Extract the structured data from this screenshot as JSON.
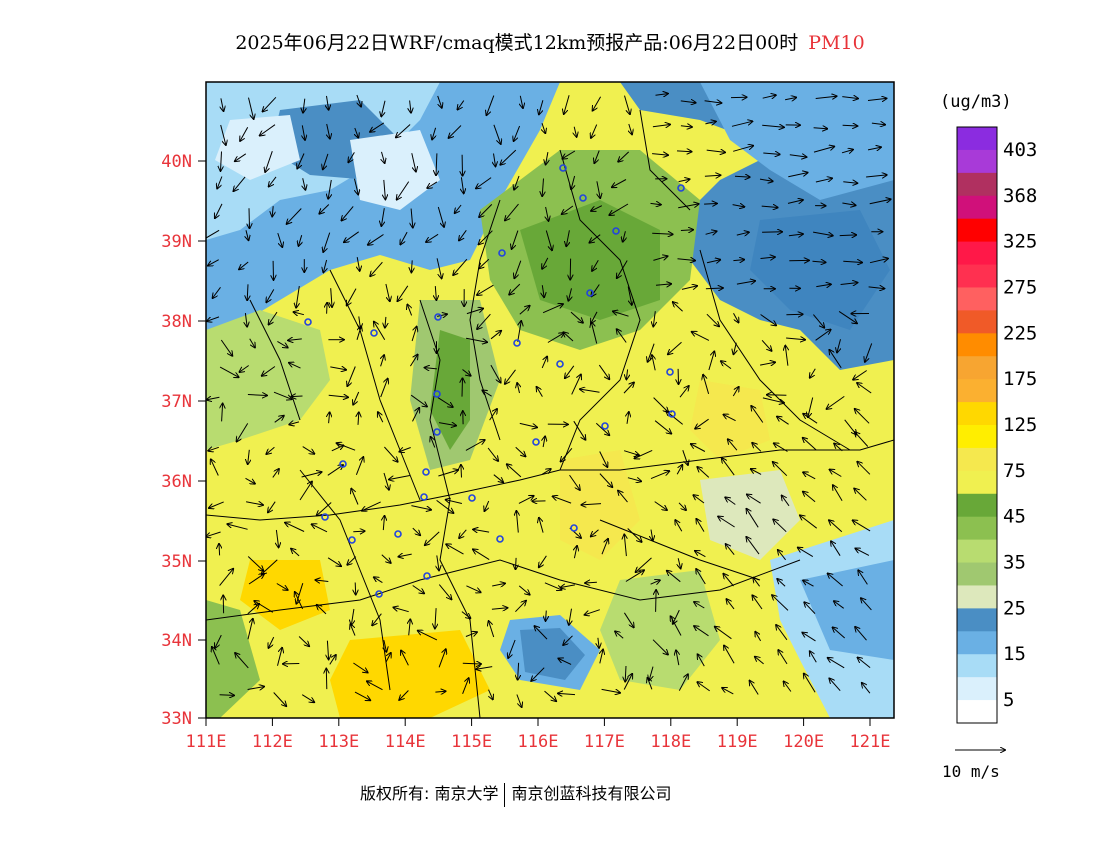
{
  "title": {
    "main": "2025年06月22日WRF/cmaq模式12km预报产品:06月22日00时",
    "variable": "PM10"
  },
  "legend": {
    "unit": "(ug/m3)",
    "labels": [
      "403",
      "368",
      "325",
      "275",
      "225",
      "175",
      "125",
      "75",
      "45",
      "35",
      "25",
      "15",
      "5"
    ],
    "bins": [
      {
        "color": "#8b2ce0"
      },
      {
        "color": "#a83ad8"
      },
      {
        "color": "#b03060"
      },
      {
        "color": "#d0107a"
      },
      {
        "color": "#ff0000"
      },
      {
        "color": "#ff1848"
      },
      {
        "color": "#ff3050"
      },
      {
        "color": "#ff6060"
      },
      {
        "color": "#f05a28"
      },
      {
        "color": "#ff8c00"
      },
      {
        "color": "#f7a531"
      },
      {
        "color": "#fbb030"
      },
      {
        "color": "#ffd800"
      },
      {
        "color": "#ffee00"
      },
      {
        "color": "#f5e84e"
      },
      {
        "color": "#f0f050"
      },
      {
        "color": "#68a838"
      },
      {
        "color": "#8cc050"
      },
      {
        "color": "#b8dc70"
      },
      {
        "color": "#a0c870"
      },
      {
        "color": "#dde8bc"
      },
      {
        "color": "#4a8ec4"
      },
      {
        "color": "#6ab0e4"
      },
      {
        "color": "#a8dcf6"
      },
      {
        "color": "#daf0fc"
      },
      {
        "color": "#ffffff"
      }
    ],
    "vector_label": "10 m/s"
  },
  "axes": {
    "lat_labels": [
      "40N",
      "39N",
      "38N",
      "37N",
      "36N",
      "35N",
      "34N",
      "33N"
    ],
    "lon_labels": [
      "111E",
      "112E",
      "113E",
      "114E",
      "115E",
      "116E",
      "117E",
      "118E",
      "119E",
      "120E",
      "121E"
    ],
    "label_color": "#e8343a"
  },
  "footer": {
    "owner": "版权所有: 南京大学",
    "company": "南京创蓝科技有限公司"
  }
}
